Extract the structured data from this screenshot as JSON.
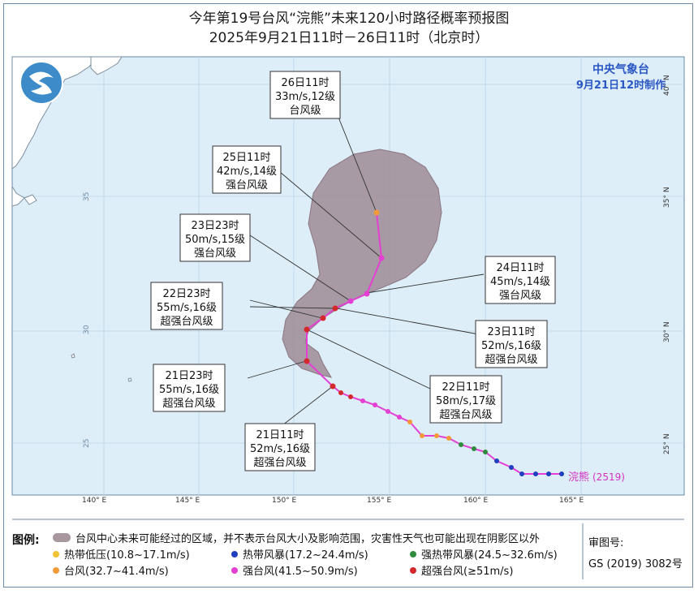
{
  "title": {
    "line1": "今年第19号台风“浣熊”未来120小时路径概率预报图",
    "line2": "2025年9月21日11时－26日11时（北京时）"
  },
  "agency": {
    "name": "中央气象台",
    "made": "9月21日12时制作"
  },
  "axes": {
    "lon_labels": [
      "140° E",
      "145° E",
      "150° E",
      "155° E",
      "160° E",
      "165° E"
    ],
    "lat_labels": [
      "25° N",
      "30° N",
      "35° N",
      "40° N"
    ],
    "lat_labels_left": [
      "25",
      "30",
      "35"
    ]
  },
  "storm": {
    "name": "浣熊",
    "code": "(2519)"
  },
  "forecast_points": [
    {
      "time": "21日11时",
      "wind": "52m/s,16级",
      "grade": "超强台风级"
    },
    {
      "time": "21日23时",
      "wind": "55m/s,16级",
      "grade": "超强台风级"
    },
    {
      "time": "22日11时",
      "wind": "58m/s,17级",
      "grade": "超强台风级"
    },
    {
      "time": "22日23时",
      "wind": "55m/s,16级",
      "grade": "超强台风级"
    },
    {
      "time": "23日11时",
      "wind": "52m/s,16级",
      "grade": "超强台风级"
    },
    {
      "time": "23日23时",
      "wind": "50m/s,15级",
      "grade": "强台风级"
    },
    {
      "time": "24日11时",
      "wind": "45m/s,14级",
      "grade": "强台风级"
    },
    {
      "time": "25日11时",
      "wind": "42m/s,14级",
      "grade": "强台风级"
    },
    {
      "time": "26日11时",
      "wind": "33m/s,12级",
      "grade": "台风级"
    }
  ],
  "legend": {
    "label": "图例:",
    "cone": "台风中心未来可能经过的区域，并不表示台风大小及影响范围，灾害性天气也可能出现在阴影区以外",
    "items": [
      {
        "text": "热带低压(10.8~17.1m/s)",
        "color": "#f1c232"
      },
      {
        "text": "热带风暴(17.2~24.4m/s)",
        "color": "#1f3fbf"
      },
      {
        "text": "强热带风暴(24.5~32.6m/s)",
        "color": "#2e8b3e"
      },
      {
        "text": "台风(32.7~41.4m/s)",
        "color": "#f39a36"
      },
      {
        "text": "强台风(41.5~50.9m/s)",
        "color": "#e43fd2"
      },
      {
        "text": "超强台风(≥51m/s)",
        "color": "#d3292c"
      }
    ]
  },
  "approval": {
    "label": "审图号:",
    "number": "GS (2019) 3082号"
  },
  "colors": {
    "sea": "#ddeef8",
    "land": "#ffffff",
    "cone": "#9e8b95",
    "track": "#e43fd2",
    "agency": "#2b57c4"
  }
}
